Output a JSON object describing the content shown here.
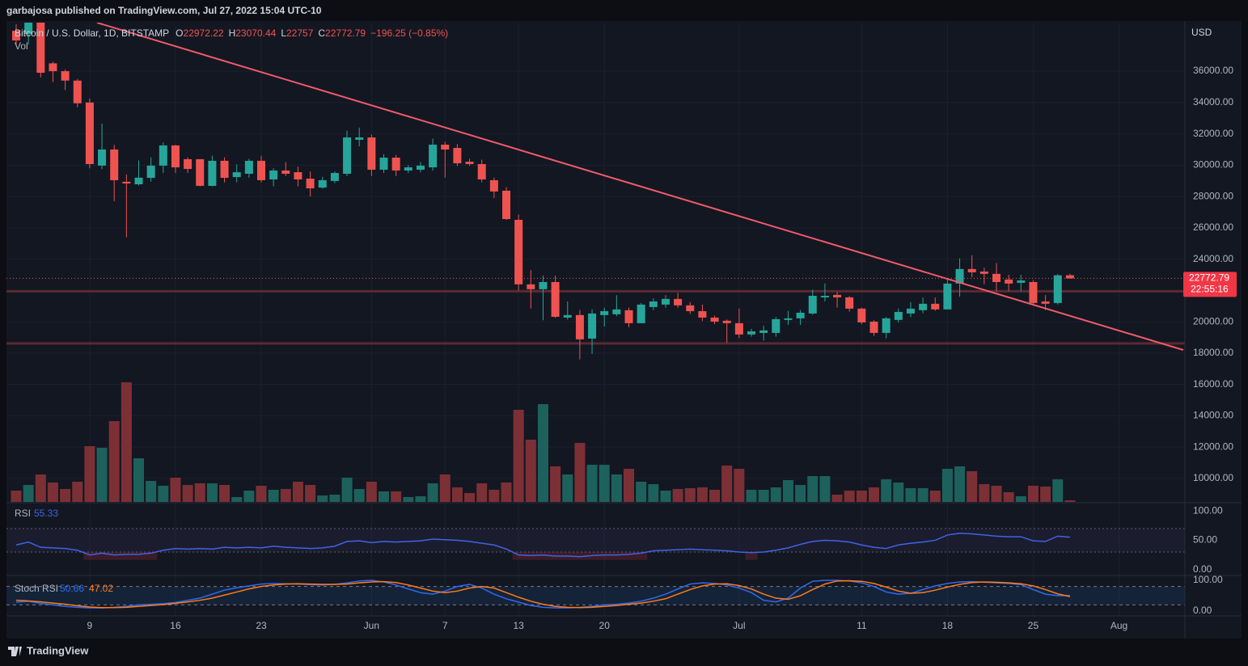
{
  "chart_data": {
    "type": "candlestick",
    "header": "garbajosa published on TradingView.com, Jul 27, 2022 15:04 UTC-10",
    "symbol": "Bitcoin / U.S. Dollar, 1D, BITSTAMP",
    "legend_keys": [
      "O",
      "H",
      "L",
      "C"
    ],
    "change": "−196.25 (−0.85%)",
    "volume_label": "Vol",
    "currency": "USD",
    "countdown": "22:55:16",
    "rsi_title": "RSI",
    "stoch_title": "Stoch RSI",
    "footer": "TradingView",
    "up_color": "#26a69a",
    "down_color": "#ef5350",
    "volume_up_color": "#1d615c",
    "volume_down_color": "#7c3035",
    "rsi_color": "#3f63e6",
    "stoch_k_color": "#2f6bf0",
    "stoch_d_color": "#ff7a1a",
    "grid": true,
    "categories": [
      null,
      null,
      null,
      null,
      null,
      null,
      "9",
      null,
      null,
      null,
      null,
      null,
      null,
      "16",
      null,
      null,
      null,
      null,
      null,
      null,
      "23",
      null,
      null,
      null,
      null,
      null,
      null,
      null,
      null,
      "Jun",
      null,
      null,
      null,
      null,
      null,
      "7",
      null,
      null,
      null,
      null,
      null,
      "13",
      null,
      null,
      null,
      null,
      null,
      null,
      "20",
      null,
      null,
      null,
      null,
      null,
      null,
      null,
      null,
      null,
      null,
      "Jul",
      null,
      null,
      null,
      null,
      null,
      null,
      null,
      null,
      null,
      "11",
      null,
      null,
      null,
      null,
      null,
      null,
      "18",
      null,
      null,
      null,
      null,
      null,
      null,
      "25",
      null,
      null,
      null,
      null,
      null,
      null,
      "Aug"
    ],
    "open": [
      38580,
      38370,
      39100,
      36500,
      36000,
      35400,
      34000,
      29970,
      31000,
      28940,
      28780,
      29190,
      29970,
      31260,
      30380,
      30380,
      28680,
      30280,
      29240,
      29450,
      30280,
      29090,
      29660,
      29550,
      29140,
      28570,
      28990,
      29450,
      31620,
      31770,
      29710,
      30480,
      29660,
      29710,
      29860,
      31310,
      31100,
      30220,
      30070,
      29040,
      28370,
      26510,
      22390,
      22080,
      22540,
      20270,
      20430,
      18930,
      20430,
      20480,
      20740,
      19910,
      20940,
      21100,
      21460,
      21050,
      20680,
      20270,
      20070,
      19910,
      19190,
      19290,
      19290,
      20120,
      20220,
      20530,
      21560,
      21720,
      21560,
      20840,
      20010,
      19290,
      20120,
      20530,
      20740,
      21150,
      20790,
      22440,
      23370,
      23210,
      23060,
      22700,
      22490,
      22540,
      21300,
      21200,
      22972.22,
      null,
      null,
      null,
      null
    ],
    "high": [
      39000,
      39500,
      39300,
      36600,
      36100,
      35500,
      34250,
      32650,
      31300,
      29400,
      30300,
      30500,
      31450,
      31300,
      30500,
      30400,
      30600,
      30500,
      30050,
      30400,
      30600,
      29800,
      30200,
      29900,
      29600,
      29250,
      29600,
      32200,
      32400,
      31950,
      30700,
      30650,
      30000,
      30200,
      31700,
      31500,
      31350,
      30400,
      30350,
      29200,
      28600,
      26850,
      23300,
      22950,
      22950,
      21300,
      20750,
      20800,
      20900,
      21700,
      20900,
      21200,
      21500,
      21700,
      21850,
      21250,
      21100,
      20400,
      20150,
      20850,
      19550,
      19750,
      20300,
      20700,
      20750,
      22050,
      22450,
      21900,
      21650,
      20900,
      20100,
      20300,
      20850,
      21250,
      21550,
      21550,
      22700,
      24050,
      24250,
      23450,
      23750,
      23000,
      23000,
      22650,
      21700,
      23050,
      23070.44,
      null,
      null,
      null,
      null
    ],
    "low": [
      37700,
      37700,
      35600,
      35300,
      34800,
      33700,
      29800,
      29750,
      27700,
      25400,
      28700,
      28950,
      29500,
      29500,
      29500,
      28650,
      28650,
      28900,
      28900,
      29200,
      28900,
      28650,
      29300,
      28650,
      28000,
      28500,
      28850,
      29300,
      31200,
      29300,
      29500,
      29300,
      29500,
      29550,
      29650,
      29200,
      29950,
      29950,
      28900,
      27900,
      26500,
      22000,
      20850,
      20100,
      20250,
      20150,
      17600,
      17950,
      19700,
      20350,
      19650,
      19900,
      20750,
      20900,
      20900,
      20500,
      20050,
      19850,
      18650,
      18950,
      19050,
      18800,
      19050,
      19800,
      19800,
      20450,
      21300,
      20900,
      20650,
      19850,
      19100,
      18950,
      19950,
      20300,
      20550,
      20700,
      20800,
      21600,
      22850,
      22400,
      21950,
      21950,
      21950,
      21050,
      20750,
      21100,
      22757,
      null,
      null,
      null,
      null
    ],
    "close": [
      37960,
      39100,
      35900,
      36000,
      35400,
      33950,
      30070,
      31000,
      29040,
      28830,
      29200,
      29970,
      31260,
      29860,
      29760,
      28680,
      30280,
      29190,
      29550,
      30280,
      29040,
      29660,
      29450,
      29090,
      28520,
      29040,
      29500,
      31770,
      31770,
      29710,
      30480,
      29660,
      29860,
      29970,
      31310,
      31000,
      30120,
      30070,
      29090,
      28320,
      26560,
      22390,
      22080,
      22540,
      20320,
      20430,
      18880,
      20530,
      20680,
      20790,
      19910,
      21100,
      21300,
      21460,
      21050,
      20680,
      20270,
      20010,
      19910,
      19190,
      19390,
      19450,
      20170,
      20220,
      20580,
      21660,
      21660,
      21560,
      20840,
      19960,
      19290,
      20220,
      20630,
      20840,
      21150,
      20790,
      22440,
      23370,
      23160,
      23060,
      22540,
      22440,
      22640,
      21200,
      21150,
      22970,
      22772.79,
      null,
      null,
      null,
      null
    ],
    "volume": [
      14,
      21,
      34,
      24,
      16,
      25,
      69,
      67,
      100,
      148,
      54,
      26,
      20,
      30,
      21,
      23,
      23,
      21,
      6,
      14,
      20,
      15,
      16,
      25,
      21,
      8,
      9,
      30,
      16,
      25,
      13,
      13,
      6,
      7,
      23,
      34,
      18,
      11,
      23,
      15,
      24,
      114,
      77,
      121,
      44,
      34,
      73,
      46,
      46,
      34,
      41,
      25,
      22,
      14,
      16,
      17,
      18,
      15,
      45,
      41,
      15,
      15,
      18,
      27,
      21,
      32,
      32,
      9,
      14,
      14,
      18,
      28,
      24,
      17,
      17,
      14,
      41,
      44,
      38,
      22,
      20,
      12,
      7,
      20,
      19,
      28,
      2,
      null,
      null,
      null,
      null
    ],
    "rsi": [
      42,
      47,
      38,
      37,
      36,
      33,
      25,
      28,
      25,
      26,
      26,
      28,
      33,
      36,
      35,
      36,
      35,
      38,
      37,
      38,
      37,
      40,
      38,
      37,
      36,
      37,
      40,
      48,
      49,
      46,
      48,
      47,
      48,
      49,
      52,
      51,
      50,
      48,
      45,
      42,
      35,
      25,
      24,
      25,
      23,
      23,
      22,
      24,
      25,
      25,
      26,
      28,
      32,
      33,
      34,
      35,
      34,
      33,
      32,
      30,
      29,
      30,
      33,
      37,
      43,
      48,
      50,
      49,
      47,
      42,
      38,
      36,
      42,
      45,
      47,
      50,
      59,
      62,
      61,
      59,
      57,
      56,
      56,
      49,
      48,
      57,
      55.33,
      null,
      null,
      null,
      null
    ],
    "stoch_k": [
      29,
      32,
      25,
      20,
      15,
      12,
      10,
      10,
      12,
      15,
      20,
      22,
      24,
      28,
      35,
      42,
      55,
      68,
      76,
      82,
      88,
      90,
      89,
      88,
      86,
      85,
      87,
      92,
      98,
      100,
      95,
      85,
      72,
      60,
      55,
      65,
      80,
      87,
      75,
      55,
      40,
      29,
      18,
      12,
      10,
      10,
      12,
      15,
      20,
      22,
      26,
      32,
      42,
      55,
      72,
      88,
      92,
      90,
      85,
      75,
      60,
      35,
      30,
      42,
      75,
      97,
      100,
      100,
      98,
      92,
      80,
      62,
      55,
      58,
      70,
      82,
      90,
      95,
      96,
      94,
      92,
      90,
      86,
      70,
      55,
      50,
      50.66,
      null,
      null,
      null,
      null
    ],
    "stoch_d": [
      35,
      33,
      30,
      26,
      22,
      17,
      13,
      11,
      11,
      12,
      15,
      18,
      21,
      25,
      30,
      35,
      42,
      52,
      62,
      72,
      80,
      85,
      88,
      89,
      88,
      87,
      87,
      88,
      92,
      95,
      96,
      93,
      85,
      75,
      65,
      60,
      65,
      75,
      80,
      75,
      60,
      45,
      32,
      22,
      15,
      12,
      11,
      12,
      15,
      18,
      22,
      26,
      32,
      40,
      55,
      70,
      82,
      88,
      89,
      83,
      72,
      55,
      42,
      38,
      50,
      70,
      88,
      98,
      99,
      97,
      90,
      78,
      65,
      58,
      60,
      68,
      78,
      87,
      93,
      95,
      94,
      92,
      89,
      82,
      70,
      56,
      47.02,
      null,
      null,
      null,
      null
    ],
    "levels": [
      21950,
      18620
    ],
    "ylim": [
      8500,
      39100
    ],
    "yticks": [
      {
        "value": 36000,
        "label": "36000.00"
      },
      {
        "value": 34000,
        "label": "34000.00"
      },
      {
        "value": 32000,
        "label": "32000.00"
      },
      {
        "value": 30000,
        "label": "30000.00"
      },
      {
        "value": 28000,
        "label": "28000.00"
      },
      {
        "value": 26000,
        "label": "26000.00"
      },
      {
        "value": 24000,
        "label": "24000.00"
      },
      {
        "value": 22000,
        "label": "22000.00"
      },
      {
        "value": 20000,
        "label": "20000.00"
      },
      {
        "value": 18000,
        "label": "18000.00"
      },
      {
        "value": 16000,
        "label": "16000.00"
      },
      {
        "value": 14000,
        "label": "14000.00"
      },
      {
        "value": 12000,
        "label": "12000.00"
      },
      {
        "value": 10000,
        "label": "10000.00"
      }
    ],
    "rsi_ylim": [
      -10,
      114
    ],
    "rsi_yticks": [
      {
        "value": 100,
        "label": "100.00"
      },
      {
        "value": 50,
        "label": "50.00"
      },
      {
        "value": 0,
        "label": "0.00"
      }
    ],
    "rsi_levels": [
      70,
      30
    ],
    "stoch_ylim": [
      -16,
      116
    ],
    "stoch_yticks": [
      {
        "value": 100,
        "label": "100.00"
      },
      {
        "value": 0,
        "label": "0.00"
      }
    ],
    "stoch_levels": [
      80,
      20
    ]
  }
}
